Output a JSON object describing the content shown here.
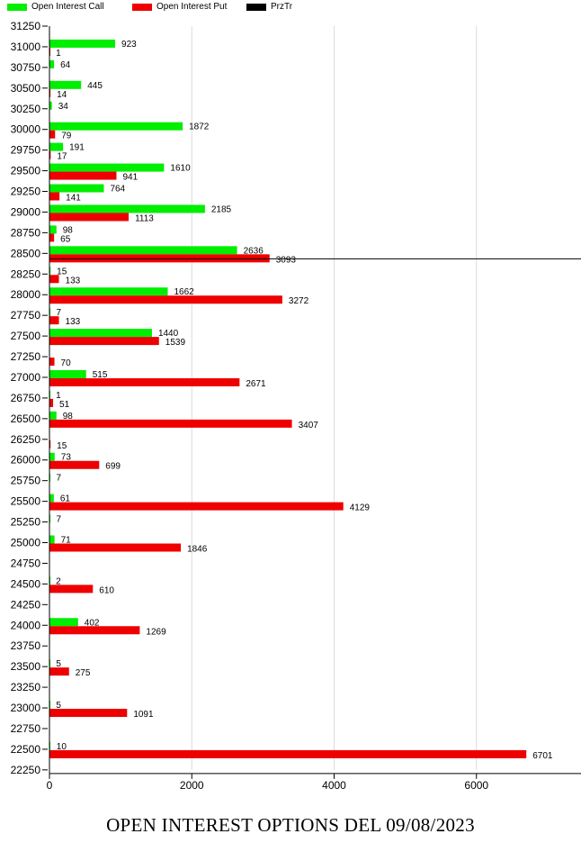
{
  "legend": [
    {
      "label": "Open Interest Call",
      "color": "#00ee00"
    },
    {
      "label": "Open Interest Put",
      "color": "#ee0000"
    },
    {
      "label": "PrzTr",
      "color": "#000000"
    }
  ],
  "chart_data": {
    "type": "bar",
    "orientation": "horizontal",
    "title": "OPEN INTEREST OPTIONS DEL 09/08/2023",
    "xlim": [
      0,
      7500
    ],
    "x_ticks": [
      0,
      2000,
      4000,
      6000
    ],
    "grid": "vertical",
    "legend_position": "top-left",
    "categories": [
      31250,
      31000,
      30750,
      30500,
      30250,
      30000,
      29750,
      29500,
      29250,
      29000,
      28750,
      28500,
      28250,
      28000,
      27750,
      27500,
      27250,
      27000,
      26750,
      26500,
      26250,
      26000,
      25750,
      25500,
      25250,
      25000,
      24750,
      24500,
      24250,
      24000,
      23750,
      23500,
      23250,
      23000,
      22750,
      22500,
      22250
    ],
    "series": [
      {
        "name": "Open Interest Call",
        "color": "#00ee00",
        "values": [
          null,
          923,
          64,
          445,
          34,
          1872,
          191,
          1610,
          764,
          2185,
          98,
          2636,
          15,
          1662,
          7,
          1440,
          null,
          515,
          1,
          98,
          null,
          73,
          7,
          61,
          7,
          71,
          null,
          2,
          null,
          402,
          null,
          5,
          null,
          5,
          null,
          10,
          null
        ]
      },
      {
        "name": "Open Interest Put",
        "color": "#ee0000",
        "values": [
          null,
          1,
          null,
          14,
          null,
          79,
          17,
          941,
          141,
          1113,
          65,
          3093,
          133,
          3272,
          133,
          1539,
          70,
          2671,
          51,
          3407,
          15,
          699,
          null,
          4129,
          null,
          1846,
          null,
          610,
          null,
          1269,
          null,
          275,
          null,
          1091,
          null,
          6701,
          null
        ]
      }
    ],
    "reference_line": {
      "name": "PrzTr",
      "value": 28500,
      "color": "#000000"
    }
  }
}
